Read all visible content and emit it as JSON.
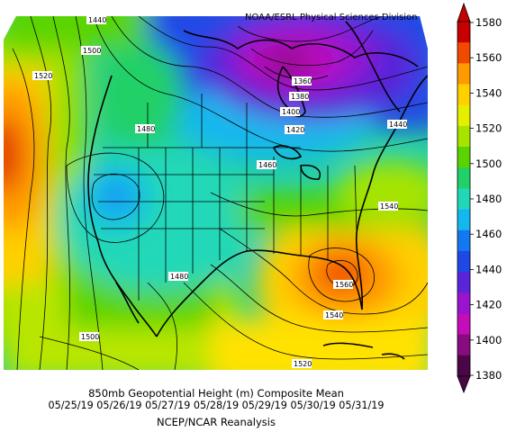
{
  "source_credit": "NOAA/ESRL Physical Sciences Division",
  "title": "850mb Geopotential Height (m) Composite Mean",
  "date_range": "05/25/19 05/26/19 05/27/19 05/28/19 05/29/19 05/30/19 05/31/19",
  "attribution": "NCEP/NCAR Reanalysis",
  "colorbar": {
    "levels": [
      "1580",
      "1560",
      "1540",
      "1520",
      "1500",
      "1480",
      "1460",
      "1440",
      "1420",
      "1400",
      "1380"
    ],
    "colors": [
      "#c80000",
      "#f04a00",
      "#ff9a00",
      "#ffd000",
      "#e6ee00",
      "#a6e400",
      "#5ad400",
      "#20d068",
      "#20d8b8",
      "#14b8ee",
      "#1478f0",
      "#2048e6",
      "#5a24d8",
      "#9a14d0",
      "#c40cb8",
      "#8a0a80",
      "#4a0646"
    ]
  },
  "contour_labels": [
    {
      "text": "1440"
    },
    {
      "text": "1500"
    },
    {
      "text": "1520"
    },
    {
      "text": "1360"
    },
    {
      "text": "1380"
    },
    {
      "text": "1400"
    },
    {
      "text": "1420"
    },
    {
      "text": "1440"
    },
    {
      "text": "1480"
    },
    {
      "text": "1460"
    },
    {
      "text": "1540"
    },
    {
      "text": "1480"
    },
    {
      "text": "1560"
    },
    {
      "text": "1540"
    },
    {
      "text": "1500"
    },
    {
      "text": "1520"
    }
  ]
}
